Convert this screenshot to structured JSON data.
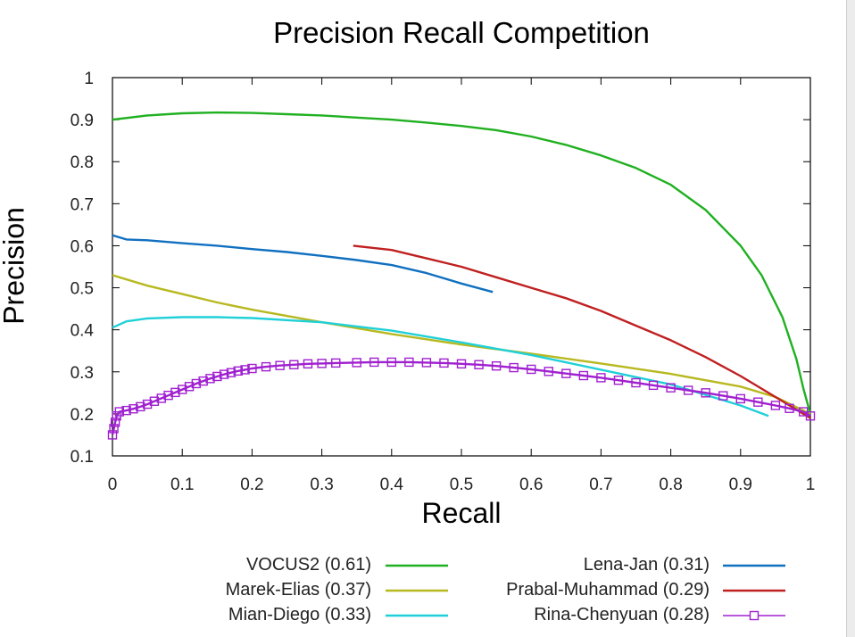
{
  "chart_data": {
    "type": "line",
    "title": "Precision Recall Competition",
    "xlabel": "Recall",
    "ylabel": "Precision",
    "xlim": [
      0,
      1
    ],
    "ylim": [
      0.1,
      1
    ],
    "xticks": [
      0,
      0.1,
      0.2,
      0.3,
      0.4,
      0.5,
      0.6,
      0.7,
      0.8,
      0.9,
      1
    ],
    "xtick_labels": [
      "0",
      "0.1",
      "0.2",
      "0.3",
      "0.4",
      "0.5",
      "0.6",
      "0.7",
      "0.8",
      "0.9",
      "1"
    ],
    "yticks": [
      0.1,
      0.2,
      0.3,
      0.4,
      0.5,
      0.6,
      0.7,
      0.8,
      0.9,
      1
    ],
    "ytick_labels": [
      "0.1",
      "0.2",
      "0.3",
      "0.4",
      "0.5",
      "0.6",
      "0.7",
      "0.8",
      "0.9",
      "1"
    ],
    "grid": false,
    "legend_position": "bottom",
    "series": [
      {
        "name": "VOCUS2 (0.61)",
        "color": "#20b020",
        "marker": "none",
        "x": [
          0,
          0.05,
          0.1,
          0.15,
          0.2,
          0.25,
          0.3,
          0.35,
          0.4,
          0.45,
          0.5,
          0.55,
          0.6,
          0.65,
          0.7,
          0.75,
          0.8,
          0.85,
          0.9,
          0.93,
          0.96,
          0.98,
          0.99,
          1
        ],
        "y": [
          0.9,
          0.91,
          0.915,
          0.917,
          0.916,
          0.913,
          0.91,
          0.905,
          0.9,
          0.893,
          0.885,
          0.875,
          0.86,
          0.84,
          0.815,
          0.785,
          0.745,
          0.685,
          0.6,
          0.53,
          0.43,
          0.33,
          0.26,
          0.2
        ]
      },
      {
        "name": "Marek-Elias (0.37)",
        "color": "#b8b820",
        "marker": "none",
        "x": [
          0,
          0.05,
          0.1,
          0.15,
          0.2,
          0.3,
          0.4,
          0.5,
          0.6,
          0.7,
          0.8,
          0.9,
          0.95,
          1
        ],
        "y": [
          0.53,
          0.505,
          0.485,
          0.465,
          0.448,
          0.418,
          0.39,
          0.365,
          0.343,
          0.32,
          0.295,
          0.265,
          0.24,
          0.2
        ]
      },
      {
        "name": "Mian-Diego (0.33)",
        "color": "#20d0d8",
        "marker": "none",
        "x": [
          0,
          0.02,
          0.05,
          0.1,
          0.15,
          0.2,
          0.3,
          0.4,
          0.5,
          0.6,
          0.7,
          0.8,
          0.9,
          0.94
        ],
        "y": [
          0.405,
          0.42,
          0.427,
          0.43,
          0.43,
          0.428,
          0.418,
          0.398,
          0.37,
          0.34,
          0.305,
          0.27,
          0.22,
          0.195
        ]
      },
      {
        "name": "Lena-Jan (0.31)",
        "color": "#1070c0",
        "marker": "none",
        "x": [
          0,
          0.02,
          0.05,
          0.1,
          0.15,
          0.2,
          0.25,
          0.3,
          0.35,
          0.4,
          0.45,
          0.5,
          0.545
        ],
        "y": [
          0.625,
          0.615,
          0.613,
          0.606,
          0.6,
          0.592,
          0.585,
          0.576,
          0.566,
          0.554,
          0.535,
          0.51,
          0.49
        ]
      },
      {
        "name": "Prabal-Muhammad (0.29)",
        "color": "#c02020",
        "marker": "none",
        "x": [
          0.345,
          0.4,
          0.45,
          0.5,
          0.55,
          0.6,
          0.65,
          0.7,
          0.75,
          0.8,
          0.85,
          0.9,
          0.95,
          0.98,
          1
        ],
        "y": [
          0.6,
          0.59,
          0.57,
          0.55,
          0.525,
          0.5,
          0.475,
          0.445,
          0.41,
          0.375,
          0.335,
          0.29,
          0.24,
          0.21,
          0.19
        ]
      },
      {
        "name": "Rina-Chenyuan (0.28)",
        "color": "#a020d0",
        "marker": "square",
        "x": [
          0,
          0.002,
          0.004,
          0.006,
          0.01,
          0.02,
          0.03,
          0.04,
          0.05,
          0.06,
          0.07,
          0.08,
          0.09,
          0.1,
          0.11,
          0.12,
          0.13,
          0.14,
          0.15,
          0.16,
          0.17,
          0.18,
          0.19,
          0.2,
          0.22,
          0.24,
          0.26,
          0.28,
          0.3,
          0.32,
          0.35,
          0.375,
          0.4,
          0.425,
          0.45,
          0.475,
          0.5,
          0.525,
          0.55,
          0.575,
          0.6,
          0.625,
          0.65,
          0.675,
          0.7,
          0.725,
          0.75,
          0.775,
          0.8,
          0.825,
          0.85,
          0.875,
          0.9,
          0.925,
          0.95,
          0.97,
          0.99,
          1
        ],
        "y": [
          0.15,
          0.165,
          0.18,
          0.195,
          0.205,
          0.208,
          0.212,
          0.217,
          0.223,
          0.23,
          0.237,
          0.244,
          0.251,
          0.258,
          0.265,
          0.272,
          0.278,
          0.284,
          0.289,
          0.294,
          0.298,
          0.302,
          0.305,
          0.308,
          0.312,
          0.315,
          0.317,
          0.319,
          0.32,
          0.321,
          0.322,
          0.323,
          0.323,
          0.323,
          0.322,
          0.321,
          0.319,
          0.317,
          0.314,
          0.31,
          0.306,
          0.301,
          0.296,
          0.291,
          0.286,
          0.28,
          0.274,
          0.268,
          0.262,
          0.256,
          0.25,
          0.243,
          0.236,
          0.228,
          0.22,
          0.213,
          0.205,
          0.195
        ]
      }
    ]
  },
  "legend": {
    "left": [
      {
        "label": "VOCUS2 (0.61)",
        "color": "#20b020",
        "marker": "none"
      },
      {
        "label": "Marek-Elias (0.37)",
        "color": "#b8b820",
        "marker": "none"
      },
      {
        "label": "Mian-Diego (0.33)",
        "color": "#20d0d8",
        "marker": "none"
      }
    ],
    "right": [
      {
        "label": "Lena-Jan (0.31)",
        "color": "#1070c0",
        "marker": "none"
      },
      {
        "label": "Prabal-Muhammad (0.29)",
        "color": "#c02020",
        "marker": "none"
      },
      {
        "label": "Rina-Chenyuan (0.28)",
        "color": "#a020d0",
        "marker": "square"
      }
    ]
  }
}
